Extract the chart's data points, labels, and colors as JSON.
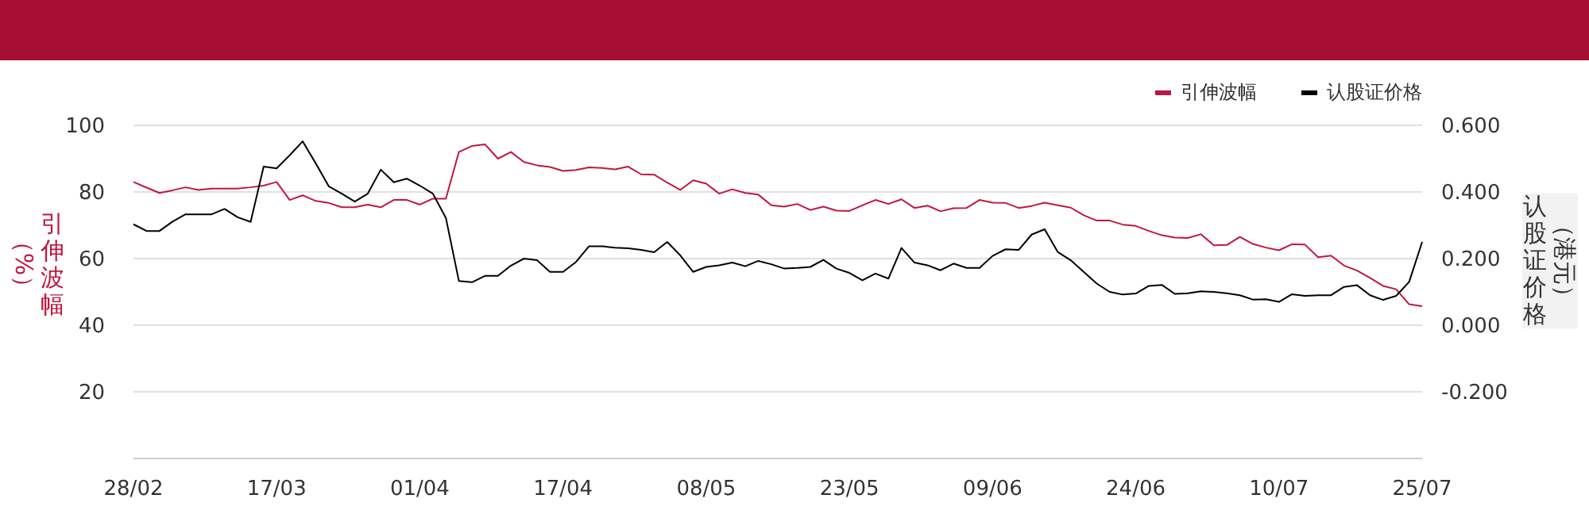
{
  "chart_data": {
    "type": "line",
    "categories": [
      "28/02",
      null,
      null,
      null,
      null,
      null,
      null,
      null,
      null,
      null,
      null,
      "17/03",
      null,
      null,
      null,
      null,
      null,
      null,
      null,
      null,
      null,
      null,
      "01/04",
      null,
      null,
      null,
      null,
      null,
      null,
      null,
      null,
      null,
      null,
      "17/04",
      null,
      null,
      null,
      null,
      null,
      null,
      null,
      null,
      null,
      null,
      "08/05",
      null,
      null,
      null,
      null,
      null,
      null,
      null,
      null,
      null,
      null,
      "23/05",
      null,
      null,
      null,
      null,
      null,
      null,
      null,
      null,
      null,
      null,
      "09/06",
      null,
      null,
      null,
      null,
      null,
      null,
      null,
      null,
      null,
      null,
      "24/06",
      null,
      null,
      null,
      null,
      null,
      null,
      null,
      null,
      null,
      null,
      "10/07",
      null,
      null,
      null,
      null,
      null,
      null,
      null,
      null,
      null,
      null,
      "25/07"
    ],
    "series": [
      {
        "name": "引伸波幅",
        "color": "#c0173f",
        "values": [
          83,
          81.3,
          79.7,
          80.5,
          81.4,
          80.6,
          81,
          81,
          81,
          81.4,
          81.9,
          83,
          77.6,
          79,
          77.3,
          76.7,
          75.4,
          75.4,
          76.2,
          75.4,
          77.6,
          77.6,
          76.2,
          78,
          78,
          92,
          93.8,
          94.3,
          90,
          92,
          89,
          88,
          87.5,
          86.3,
          86.6,
          87.4,
          87.2,
          86.8,
          87.6,
          85.3,
          85.2,
          82.8,
          80.6,
          83.5,
          82.5,
          79.5,
          80.8,
          79.7,
          79.2,
          76,
          75.6,
          76.4,
          74.6,
          75.6,
          74.4,
          74.3,
          76,
          77.6,
          76.4,
          77.8,
          75.2,
          75.9,
          74.2,
          75.1,
          75.2,
          77.6,
          76.8,
          76.7,
          75.2,
          75.8,
          76.8,
          76,
          75.3,
          73,
          71.4,
          71.4,
          70.2,
          69.8,
          68.3,
          67,
          66.3,
          66.2,
          67.3,
          64,
          64.1,
          66.5,
          64.4,
          63.3,
          62.5,
          64.3,
          64.2,
          60.4,
          60.9,
          57.9,
          56.4,
          54.2,
          51.8,
          50.8,
          46.3,
          45.7
        ]
      },
      {
        "name": "认股证价格",
        "color": "#000000",
        "axis": "y2",
        "values": [
          0.303,
          0.283,
          0.283,
          0.311,
          0.333,
          0.333,
          0.333,
          0.349,
          0.324,
          0.31,
          0.476,
          0.471,
          0.51,
          0.552,
          0.486,
          0.417,
          0.395,
          0.371,
          0.395,
          0.467,
          0.429,
          0.44,
          0.419,
          0.395,
          0.322,
          0.133,
          0.129,
          0.148,
          0.148,
          0.179,
          0.2,
          0.195,
          0.16,
          0.16,
          0.19,
          0.237,
          0.237,
          0.233,
          0.231,
          0.226,
          0.219,
          0.25,
          0.21,
          0.16,
          0.175,
          0.18,
          0.188,
          0.177,
          0.193,
          0.183,
          0.17,
          0.172,
          0.175,
          0.196,
          0.17,
          0.157,
          0.135,
          0.155,
          0.14,
          0.232,
          0.188,
          0.18,
          0.165,
          0.185,
          0.172,
          0.172,
          0.208,
          0.228,
          0.226,
          0.272,
          0.288,
          0.22,
          0.195,
          0.16,
          0.125,
          0.1,
          0.092,
          0.095,
          0.118,
          0.121,
          0.094,
          0.096,
          0.102,
          0.1,
          0.096,
          0.09,
          0.077,
          0.078,
          0.07,
          0.093,
          0.088,
          0.09,
          0.09,
          0.115,
          0.12,
          0.09,
          0.076,
          0.088,
          0.13,
          0.25
        ]
      }
    ],
    "ylabel": "引伸波幅（%）",
    "y2label": "认股证价格（港元）",
    "ylim": [
      0,
      100
    ],
    "yticks": [
      20,
      40,
      60,
      80,
      100
    ],
    "y2lim": [
      -0.4,
      0.6
    ],
    "y2ticks": [
      {
        "value": -0.2,
        "label": "-0.200"
      },
      {
        "value": 0,
        "label": "0.000"
      },
      {
        "value": 0.2,
        "label": "0.200"
      },
      {
        "value": 0.4,
        "label": "0.400"
      },
      {
        "value": 0.6,
        "label": "0.600"
      }
    ],
    "grid": "y",
    "legend": "top right"
  }
}
